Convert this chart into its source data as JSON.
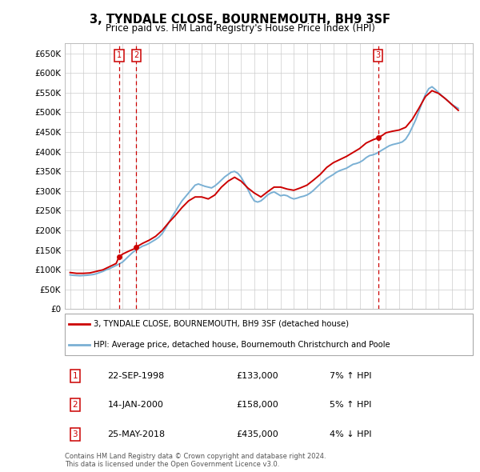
{
  "title": "3, TYNDALE CLOSE, BOURNEMOUTH, BH9 3SF",
  "subtitle": "Price paid vs. HM Land Registry's House Price Index (HPI)",
  "ylabel_ticks": [
    "£0",
    "£50K",
    "£100K",
    "£150K",
    "£200K",
    "£250K",
    "£300K",
    "£350K",
    "£400K",
    "£450K",
    "£500K",
    "£550K",
    "£600K",
    "£650K"
  ],
  "ytick_values": [
    0,
    50000,
    100000,
    150000,
    200000,
    250000,
    300000,
    350000,
    400000,
    450000,
    500000,
    550000,
    600000,
    650000
  ],
  "ylim": [
    0,
    675000
  ],
  "xlim_start": 1994.6,
  "xlim_end": 2025.6,
  "sale_points": [
    {
      "num": 1,
      "date": "22-SEP-1998",
      "year": 1998.72,
      "price": 133000,
      "pct": "7%",
      "dir": "↑"
    },
    {
      "num": 2,
      "date": "14-JAN-2000",
      "year": 2000.04,
      "price": 158000,
      "pct": "5%",
      "dir": "↑"
    },
    {
      "num": 3,
      "date": "25-MAY-2018",
      "year": 2018.4,
      "price": 435000,
      "pct": "4%",
      "dir": "↓"
    }
  ],
  "legend_label_red": "3, TYNDALE CLOSE, BOURNEMOUTH, BH9 3SF (detached house)",
  "legend_label_blue": "HPI: Average price, detached house, Bournemouth Christchurch and Poole",
  "footer_line1": "Contains HM Land Registry data © Crown copyright and database right 2024.",
  "footer_line2": "This data is licensed under the Open Government Licence v3.0.",
  "red_color": "#cc0000",
  "blue_color": "#7ab0d4",
  "background_color": "#ffffff",
  "grid_color": "#cccccc",
  "hpi_data": {
    "years": [
      1995.0,
      1995.25,
      1995.5,
      1995.75,
      1996.0,
      1996.25,
      1996.5,
      1996.75,
      1997.0,
      1997.25,
      1997.5,
      1997.75,
      1998.0,
      1998.25,
      1998.5,
      1998.75,
      1999.0,
      1999.25,
      1999.5,
      1999.75,
      2000.0,
      2000.25,
      2000.5,
      2000.75,
      2001.0,
      2001.25,
      2001.5,
      2001.75,
      2002.0,
      2002.25,
      2002.5,
      2002.75,
      2003.0,
      2003.25,
      2003.5,
      2003.75,
      2004.0,
      2004.25,
      2004.5,
      2004.75,
      2005.0,
      2005.25,
      2005.5,
      2005.75,
      2006.0,
      2006.25,
      2006.5,
      2006.75,
      2007.0,
      2007.25,
      2007.5,
      2007.75,
      2008.0,
      2008.25,
      2008.5,
      2008.75,
      2009.0,
      2009.25,
      2009.5,
      2009.75,
      2010.0,
      2010.25,
      2010.5,
      2010.75,
      2011.0,
      2011.25,
      2011.5,
      2011.75,
      2012.0,
      2012.25,
      2012.5,
      2012.75,
      2013.0,
      2013.25,
      2013.5,
      2013.75,
      2014.0,
      2014.25,
      2014.5,
      2014.75,
      2015.0,
      2015.25,
      2015.5,
      2015.75,
      2016.0,
      2016.25,
      2016.5,
      2016.75,
      2017.0,
      2017.25,
      2017.5,
      2017.75,
      2018.0,
      2018.25,
      2018.5,
      2018.75,
      2019.0,
      2019.25,
      2019.5,
      2019.75,
      2020.0,
      2020.25,
      2020.5,
      2020.75,
      2021.0,
      2021.25,
      2021.5,
      2021.75,
      2022.0,
      2022.25,
      2022.5,
      2022.75,
      2023.0,
      2023.25,
      2023.5,
      2023.75,
      2024.0,
      2024.25,
      2024.5
    ],
    "values": [
      87000,
      86000,
      85500,
      85000,
      85500,
      86000,
      87000,
      88000,
      90000,
      93000,
      96000,
      100000,
      103000,
      107000,
      111000,
      115000,
      120000,
      128000,
      136000,
      144000,
      150000,
      155000,
      160000,
      163000,
      167000,
      172000,
      177000,
      183000,
      192000,
      205000,
      220000,
      235000,
      248000,
      262000,
      275000,
      285000,
      295000,
      305000,
      315000,
      318000,
      315000,
      312000,
      310000,
      308000,
      313000,
      320000,
      328000,
      336000,
      342000,
      348000,
      350000,
      345000,
      335000,
      320000,
      305000,
      288000,
      275000,
      272000,
      275000,
      282000,
      290000,
      295000,
      298000,
      293000,
      288000,
      290000,
      288000,
      283000,
      280000,
      282000,
      285000,
      287000,
      290000,
      295000,
      302000,
      310000,
      318000,
      325000,
      332000,
      337000,
      342000,
      348000,
      352000,
      355000,
      358000,
      363000,
      368000,
      370000,
      373000,
      378000,
      385000,
      390000,
      392000,
      395000,
      400000,
      405000,
      410000,
      415000,
      418000,
      420000,
      422000,
      425000,
      432000,
      445000,
      462000,
      480000,
      502000,
      525000,
      545000,
      560000,
      565000,
      558000,
      550000,
      542000,
      535000,
      528000,
      520000,
      515000,
      510000
    ]
  },
  "price_line_data": {
    "years": [
      1995.0,
      1995.5,
      1996.0,
      1996.5,
      1997.0,
      1997.5,
      1998.0,
      1998.5,
      1998.72,
      1999.0,
      1999.5,
      2000.0,
      2000.04,
      2000.5,
      2001.0,
      2001.5,
      2002.0,
      2002.5,
      2003.0,
      2003.5,
      2004.0,
      2004.5,
      2005.0,
      2005.5,
      2006.0,
      2006.5,
      2007.0,
      2007.5,
      2008.0,
      2008.5,
      2009.0,
      2009.5,
      2010.0,
      2010.5,
      2011.0,
      2011.5,
      2012.0,
      2012.5,
      2013.0,
      2013.5,
      2014.0,
      2014.5,
      2015.0,
      2015.5,
      2016.0,
      2016.5,
      2017.0,
      2017.5,
      2018.0,
      2018.4,
      2018.75,
      2019.0,
      2019.5,
      2020.0,
      2020.5,
      2021.0,
      2021.5,
      2022.0,
      2022.5,
      2023.0,
      2023.5,
      2024.0,
      2024.5
    ],
    "values": [
      93000,
      91000,
      91000,
      92000,
      96000,
      100000,
      108000,
      116000,
      133000,
      140000,
      148000,
      155000,
      158000,
      167000,
      175000,
      185000,
      200000,
      220000,
      238000,
      258000,
      275000,
      285000,
      285000,
      280000,
      290000,
      310000,
      325000,
      335000,
      325000,
      308000,
      295000,
      285000,
      298000,
      310000,
      310000,
      305000,
      302000,
      308000,
      315000,
      328000,
      342000,
      360000,
      372000,
      380000,
      388000,
      398000,
      408000,
      422000,
      430000,
      435000,
      442000,
      448000,
      452000,
      455000,
      462000,
      482000,
      510000,
      540000,
      555000,
      548000,
      535000,
      520000,
      505000
    ]
  }
}
